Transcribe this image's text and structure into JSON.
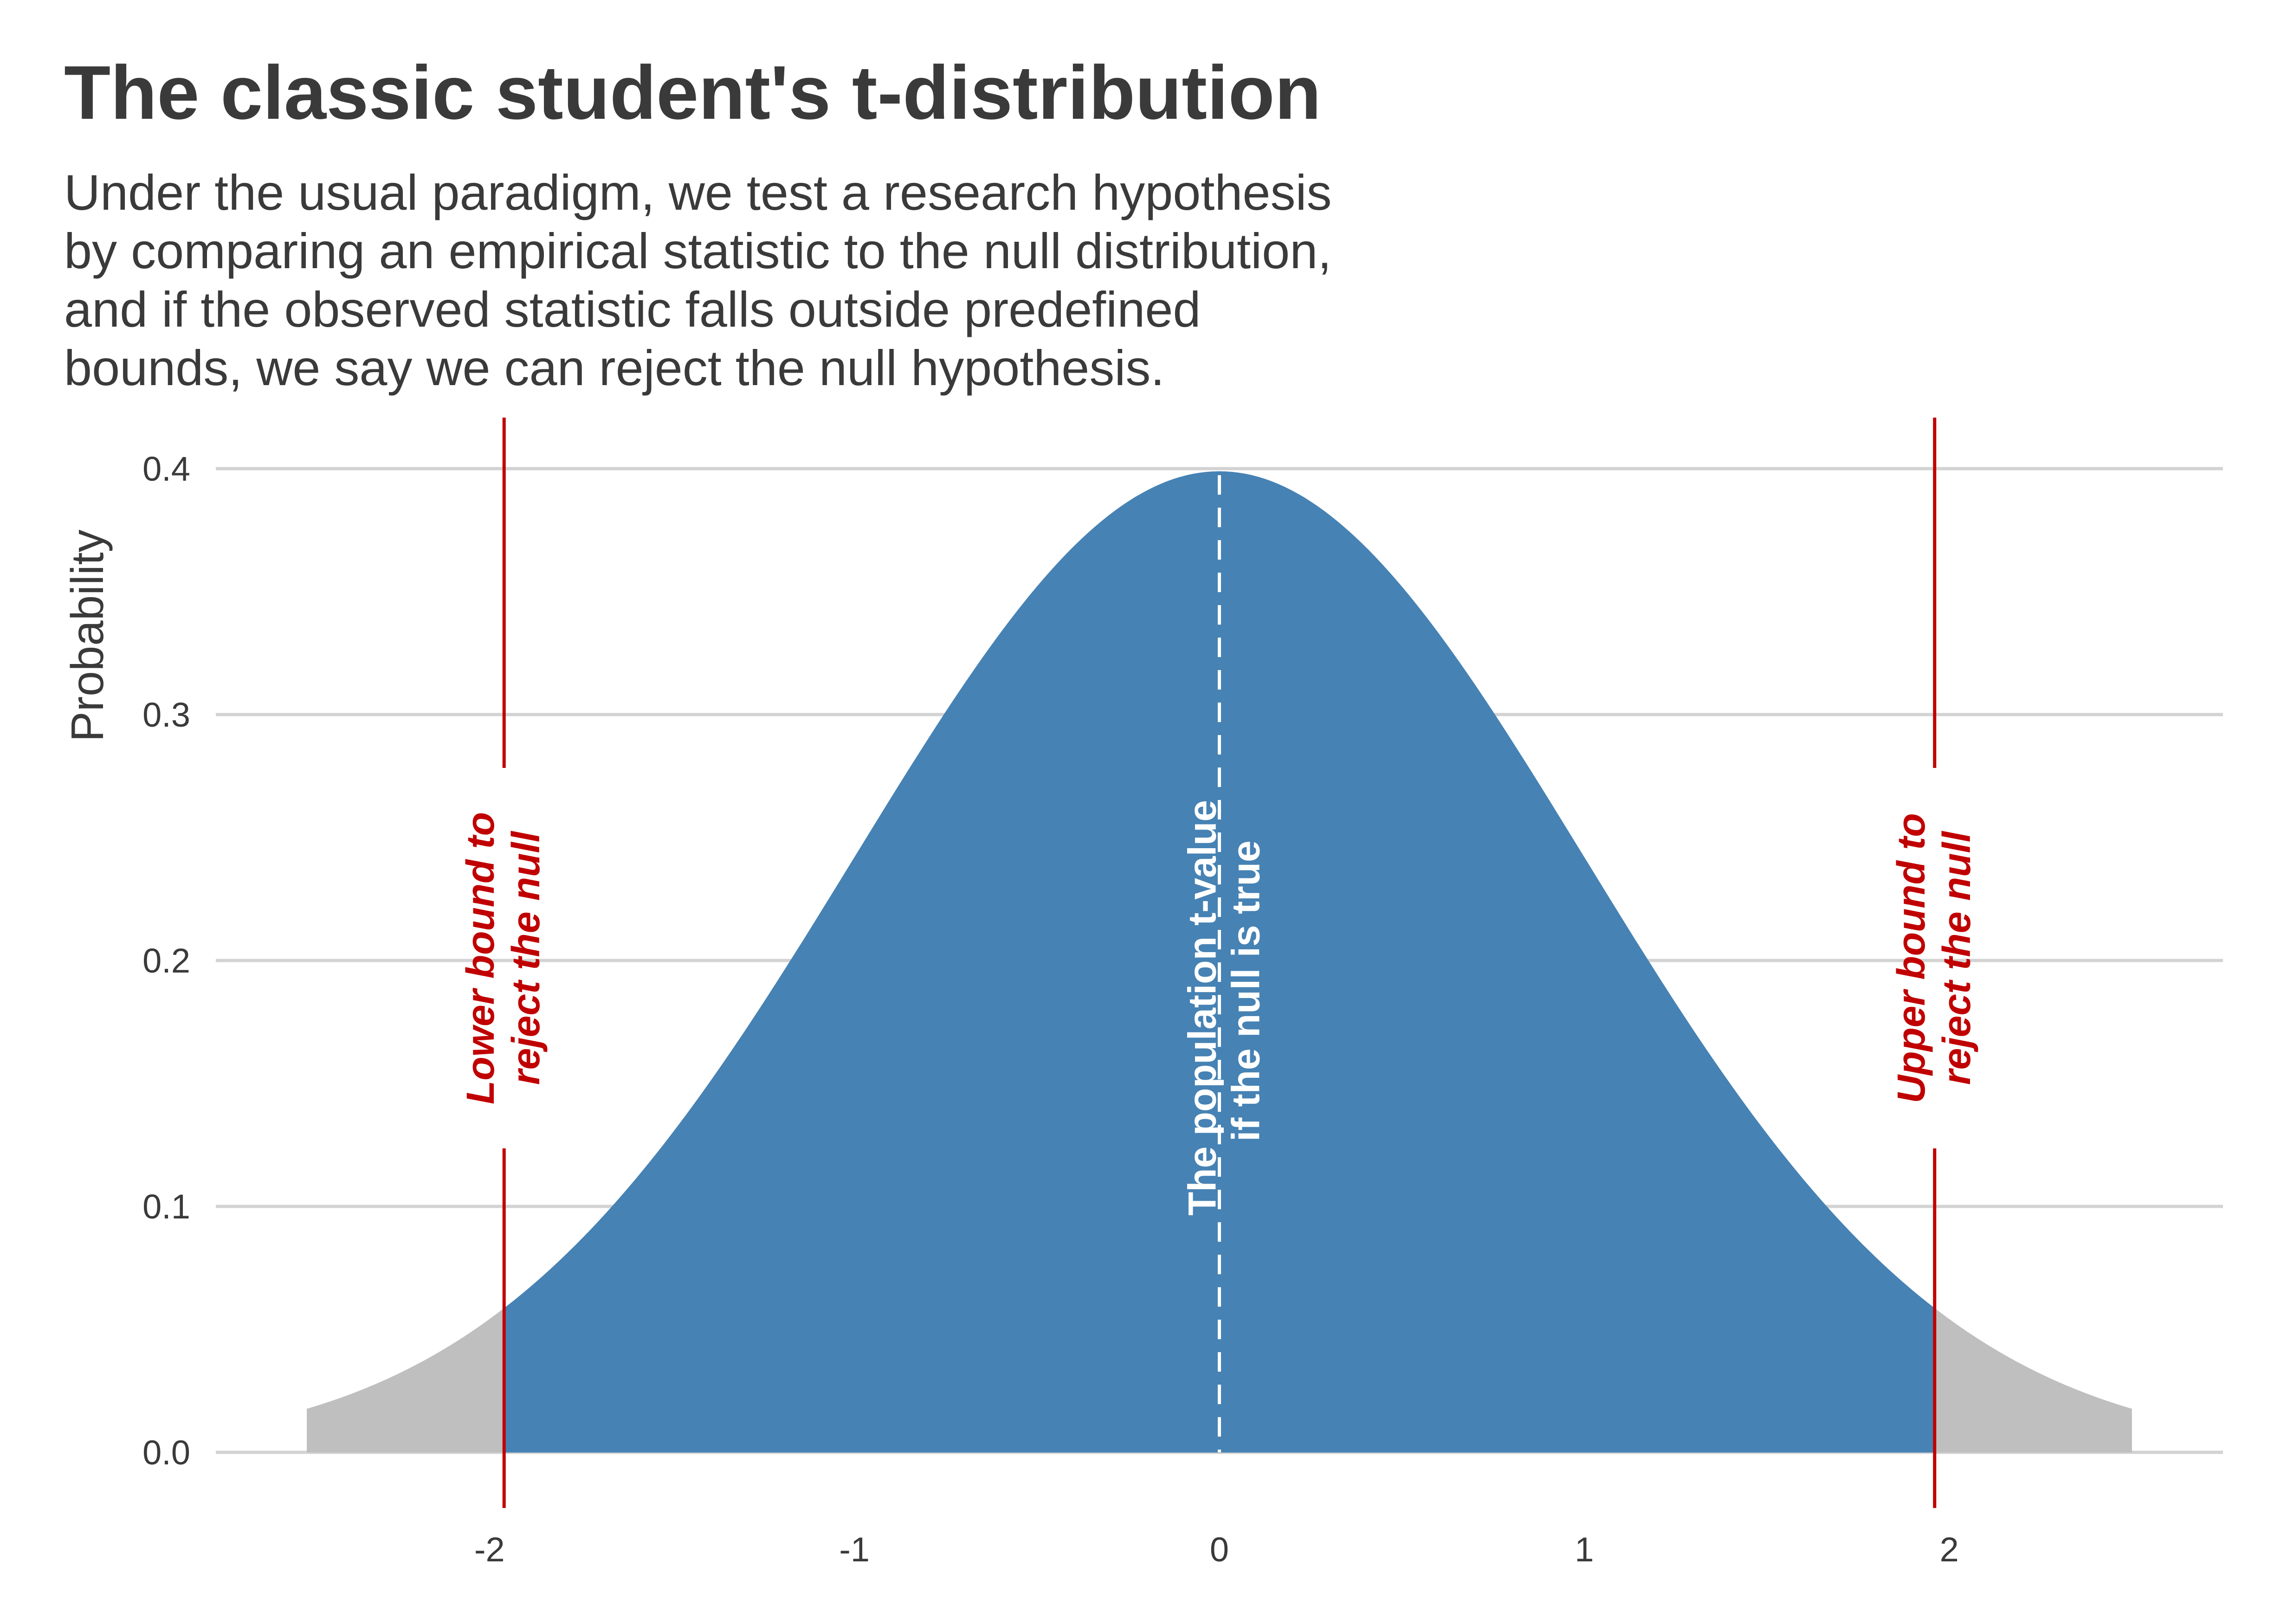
{
  "chart_data": {
    "type": "area",
    "title": "The classic student's t-distribution",
    "subtitle": [
      "Under the usual paradigm, we test a research hypothesis",
      "by comparing an empirical statistic to the null distribution,",
      "and if the observed statistic falls outside predefined",
      "bounds, we say we can reject the null hypothesis."
    ],
    "xlabel": "",
    "ylabel": "Probability",
    "xlim": [
      -2.75,
      2.75
    ],
    "ylim": [
      0,
      0.4
    ],
    "x_ticks": [
      -2,
      -1,
      0,
      1,
      2
    ],
    "x_tick_labels": [
      "-2",
      "-1",
      "0",
      "1",
      "2"
    ],
    "y_ticks": [
      0,
      0.1,
      0.2,
      0.3,
      0.4
    ],
    "y_tick_labels": [
      "0.0",
      "0.1",
      "0.2",
      "0.3",
      "0.4"
    ],
    "grid": "horizontal",
    "distribution": "t",
    "df": 1000,
    "x_range": [
      -2.5,
      2.5
    ],
    "series": [
      {
        "region": "lower-tail",
        "x_from": -2.5,
        "x_to": -1.96,
        "color": "#bfbfbf"
      },
      {
        "region": "center",
        "x_from": -1.96,
        "x_to": 1.96,
        "color": "#4682b4"
      },
      {
        "region": "upper-tail",
        "x_from": 1.96,
        "x_to": 2.5,
        "color": "#bfbfbf"
      }
    ],
    "curve_x": [
      -2.5,
      -2.4,
      -2.3,
      -2.2,
      -2.1,
      -2.0,
      -1.9,
      -1.8,
      -1.7,
      -1.6,
      -1.5,
      -1.4,
      -1.3,
      -1.2,
      -1.1,
      -1.0,
      -0.9,
      -0.8,
      -0.7,
      -0.6,
      -0.5,
      -0.4,
      -0.3,
      -0.2,
      -0.1,
      0.0,
      0.1,
      0.2,
      0.3,
      0.4,
      0.5,
      0.6,
      0.7,
      0.8,
      0.9,
      1.0,
      1.1,
      1.2,
      1.3,
      1.4,
      1.5,
      1.6,
      1.7,
      1.8,
      1.9,
      2.0,
      2.1,
      2.2,
      2.3,
      2.4,
      2.5
    ],
    "curve_y": [
      0.0177,
      0.0226,
      0.0285,
      0.0357,
      0.0442,
      0.0543,
      0.0658,
      0.0791,
      0.0941,
      0.1109,
      0.1295,
      0.1497,
      0.1714,
      0.1942,
      0.2179,
      0.242,
      0.2661,
      0.2897,
      0.3122,
      0.3332,
      0.3521,
      0.3683,
      0.3814,
      0.391,
      0.397,
      0.3989,
      0.397,
      0.391,
      0.3814,
      0.3683,
      0.3521,
      0.3332,
      0.3122,
      0.2897,
      0.2661,
      0.242,
      0.2179,
      0.1942,
      0.1714,
      0.1497,
      0.1295,
      0.1109,
      0.0941,
      0.0791,
      0.0658,
      0.0543,
      0.0442,
      0.0357,
      0.0285,
      0.0226,
      0.0177
    ],
    "reference_lines": [
      {
        "name": "lower-bound",
        "x": -1.96,
        "color": "#c00000",
        "style": "solid",
        "label": [
          "Lower bound to",
          "reject the null"
        ]
      },
      {
        "name": "population-t-value",
        "x": 0,
        "color": "#ffffff",
        "style": "dashed",
        "label": [
          "The population t-value",
          "if the null is true"
        ]
      },
      {
        "name": "upper-bound",
        "x": 1.96,
        "color": "#c00000",
        "style": "solid",
        "label": [
          "Upper bound to",
          "reject the null"
        ]
      }
    ],
    "colors": {
      "center_fill": "#4682b4",
      "tail_fill": "#bfbfbf",
      "bound_line": "#c00000",
      "grid": "#d3d3d3",
      "text": "#3a3a3a"
    }
  }
}
